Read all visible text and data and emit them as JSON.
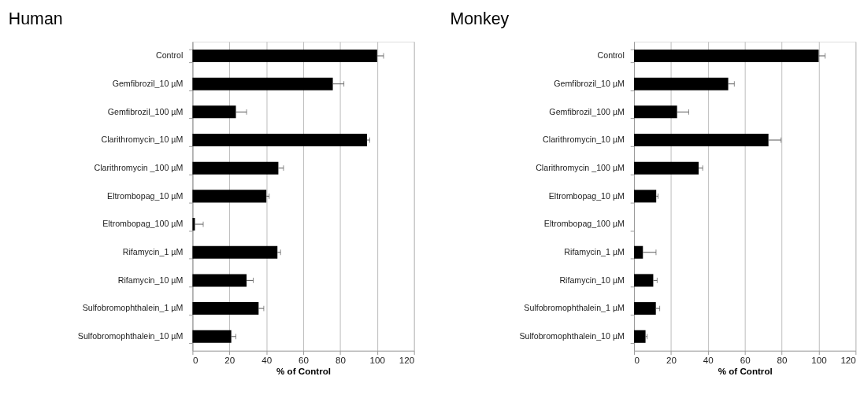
{
  "chart_data": [
    {
      "type": "bar",
      "orientation": "horizontal",
      "title": "Human",
      "xlabel": "% of  Control",
      "categories": [
        "Control",
        "Gemfibrozil_10 µM",
        "Gemfibrozil_100 µM",
        "Clarithromycin_10 µM",
        "Clarithromycin _100 µM",
        "Eltrombopag_10 µM",
        "Eltrombopag_100 µM",
        "Rifamycin_1 µM",
        "Rifamycin_10 µM",
        "Sulfobromophthalein_1 µM",
        "Sulfobromophthalein_10 µM"
      ],
      "series": [
        {
          "color": "#000000",
          "values": [
            100,
            76,
            23.5,
            94.5,
            46.5,
            40,
            1.3,
            46,
            29.3,
            35.8,
            21
          ],
          "errors": [
            [
              100,
              103.5
            ],
            [
              76,
              82
            ],
            [
              23.5,
              29.3
            ],
            [
              94.5,
              96
            ],
            [
              46.5,
              49.3
            ],
            [
              40,
              41.5
            ],
            [
              1.3,
              5.8
            ],
            [
              46,
              47.7
            ],
            [
              29.3,
              32.9
            ],
            [
              35.8,
              38.6
            ],
            [
              21,
              23.5
            ]
          ]
        }
      ],
      "xlim": [
        0,
        120
      ],
      "xticks": [
        0,
        20,
        40,
        60,
        80,
        100,
        120
      ],
      "grid": "x"
    },
    {
      "type": "bar",
      "orientation": "horizontal",
      "title": "Monkey",
      "xlabel": "% of  Control",
      "categories": [
        "Control",
        "Gemfibrozil_10 µM",
        "Gemfibrozil_100 µM",
        "Clarithromycin_10 µM",
        "Clarithromycin _100 µM",
        "Eltrombopag_10 µM",
        "Eltrombopag_100 µM",
        "Rifamycin_1 µM",
        "Rifamycin_10 µM",
        "Sulfobromophthalein_1 µM",
        "Sulfobromophthalein_10 µM"
      ],
      "series": [
        {
          "color": "#000000",
          "values": [
            100,
            51,
            23.3,
            72.8,
            35,
            12,
            null,
            4.8,
            10.4,
            11.8,
            6.2
          ],
          "errors": [
            [
              100,
              103.5
            ],
            [
              51,
              54.3
            ],
            [
              23.3,
              29.6
            ],
            [
              72.8,
              79.6
            ],
            [
              35,
              37.2
            ],
            [
              12,
              13
            ],
            null,
            [
              4.8,
              11.9
            ],
            [
              10.4,
              12.5
            ],
            [
              11.8,
              13.9
            ],
            [
              6.2,
              7.1
            ]
          ]
        }
      ],
      "xlim": [
        0,
        120
      ],
      "xticks": [
        0,
        20,
        40,
        60,
        80,
        100,
        120
      ],
      "grid": "x"
    }
  ]
}
